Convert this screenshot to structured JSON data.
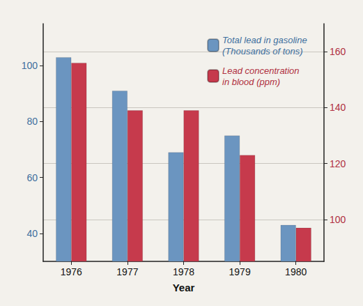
{
  "chart_data": {
    "type": "bar",
    "x_label": "Year",
    "categories": [
      "1976",
      "1977",
      "1978",
      "1979",
      "1980"
    ],
    "series": [
      {
        "name": "Total lead in gasoline\n(Thousands of tons)",
        "color": "#6b95c0",
        "values": [
          103,
          91,
          69,
          75,
          43
        ]
      },
      {
        "name": "Lead concentration\nin blood (ppm)",
        "color": "#c63a4c",
        "axis": "y2",
        "values": [
          156,
          139,
          139,
          123,
          97
        ]
      }
    ],
    "ylim": [
      30,
      115
    ],
    "yticks": [
      40,
      60,
      80,
      100
    ],
    "y2lim": [
      85,
      170
    ],
    "y2ticks": [
      100,
      120,
      140,
      160
    ],
    "grid": true,
    "legend": "upper right"
  }
}
